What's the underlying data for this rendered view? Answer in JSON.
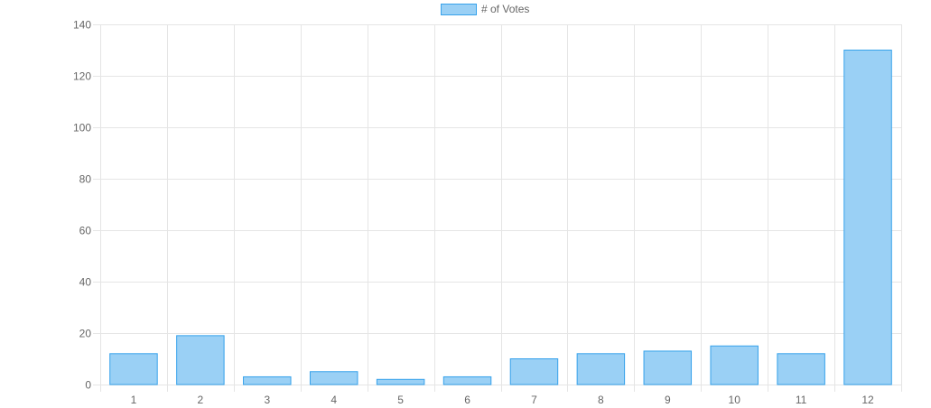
{
  "chart_data": {
    "type": "bar",
    "categories": [
      "1",
      "2",
      "3",
      "4",
      "5",
      "6",
      "7",
      "8",
      "9",
      "10",
      "11",
      "12"
    ],
    "series": [
      {
        "name": "# of Votes",
        "values": [
          12,
          19,
          3,
          5,
          2,
          3,
          10,
          12,
          13,
          15,
          12,
          130
        ],
        "fill": "#9ad0f5",
        "stroke": "#36a2eb"
      }
    ],
    "ylim": [
      0,
      140
    ],
    "yticks": [
      0,
      20,
      40,
      60,
      80,
      100,
      120,
      140
    ],
    "grid": true,
    "legend": "top-center",
    "gridColor": "#e5e5e5",
    "tickColor": "#666666"
  }
}
